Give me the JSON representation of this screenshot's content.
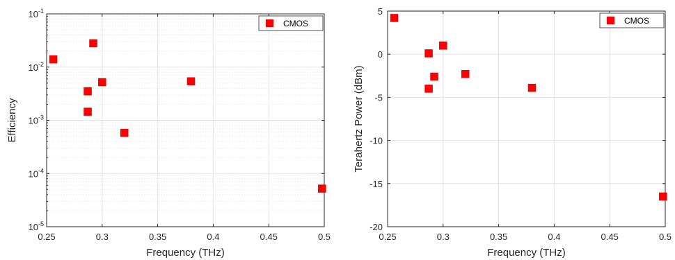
{
  "chart_data": [
    {
      "type": "scatter",
      "xlabel": "Frequency (THz)",
      "ylabel": "Efficiency",
      "yscale": "log",
      "xlim": [
        0.25,
        0.5
      ],
      "ylim_exp": [
        -5,
        -1
      ],
      "x_ticks": [
        "0.25",
        "0.3",
        "0.35",
        "0.4",
        "0.45",
        "0.5"
      ],
      "y_tick_base": "10",
      "y_tick_exps": [
        "-5",
        "-4",
        "-3",
        "-2",
        "-1"
      ],
      "grid": true,
      "legend_position": "top-right",
      "marker_color": "#ff0000",
      "series": [
        {
          "name": "CMOS",
          "points": [
            {
              "x": 0.256,
              "y": 0.014
            },
            {
              "x": 0.292,
              "y": 0.028
            },
            {
              "x": 0.287,
              "y": 0.0035
            },
            {
              "x": 0.287,
              "y": 0.00145
            },
            {
              "x": 0.3,
              "y": 0.0052
            },
            {
              "x": 0.32,
              "y": 0.00058
            },
            {
              "x": 0.38,
              "y": 0.0054
            },
            {
              "x": 0.498,
              "y": 5.2e-05
            }
          ]
        }
      ]
    },
    {
      "type": "scatter",
      "xlabel": "Frequency (THz)",
      "ylabel": "Terahertz Power (dBm)",
      "yscale": "linear",
      "xlim": [
        0.25,
        0.5
      ],
      "ylim": [
        -20,
        5
      ],
      "x_ticks": [
        "0.25",
        "0.3",
        "0.35",
        "0.4",
        "0.45",
        "0.5"
      ],
      "y_ticks": [
        "5",
        "0",
        "-5",
        "-10",
        "-15",
        "-20"
      ],
      "grid": true,
      "legend_position": "top-right",
      "marker_color": "#ff0000",
      "series": [
        {
          "name": "CMOS",
          "points": [
            {
              "x": 0.256,
              "y": 4.2
            },
            {
              "x": 0.287,
              "y": 0.1
            },
            {
              "x": 0.3,
              "y": 1.0
            },
            {
              "x": 0.292,
              "y": -2.6
            },
            {
              "x": 0.287,
              "y": -4.0
            },
            {
              "x": 0.32,
              "y": -2.3
            },
            {
              "x": 0.38,
              "y": -3.9
            },
            {
              "x": 0.498,
              "y": -16.5
            }
          ]
        }
      ]
    }
  ]
}
